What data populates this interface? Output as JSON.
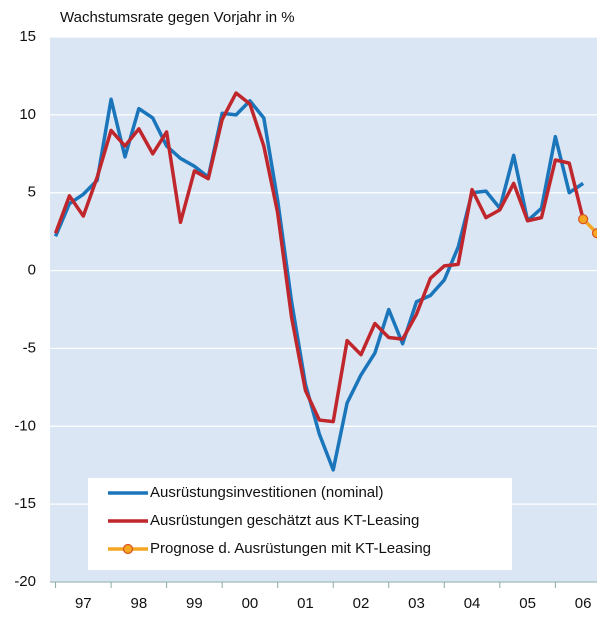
{
  "chart_data": {
    "type": "line",
    "title": "Wachstumsrate gegen Vorjahr in %",
    "xlim": [
      1996.9,
      2006.75
    ],
    "ylim": [
      -20,
      15
    ],
    "yticks": [
      -20,
      -15,
      -10,
      -5,
      0,
      5,
      10,
      15
    ],
    "xticks": [
      {
        "value": 1997.5,
        "label": "97"
      },
      {
        "value": 1998.5,
        "label": "98"
      },
      {
        "value": 1999.5,
        "label": "99"
      },
      {
        "value": 2000.5,
        "label": "00"
      },
      {
        "value": 2001.5,
        "label": "01"
      },
      {
        "value": 2002.5,
        "label": "02"
      },
      {
        "value": 2003.5,
        "label": "03"
      },
      {
        "value": 2004.5,
        "label": "04"
      },
      {
        "value": 2005.5,
        "label": "05"
      },
      {
        "value": 2006.5,
        "label": "06"
      }
    ],
    "grid": true,
    "background": "#dbe6f4",
    "series": [
      {
        "name": "Ausrüstungsinvestitionen (nominal)",
        "color": "#1a75bb",
        "x": [
          1997,
          1997.25,
          1997.5,
          1997.75,
          1998,
          1998.25,
          1998.5,
          1998.75,
          1999,
          1999.25,
          1999.5,
          1999.75,
          2000,
          2000.25,
          2000.5,
          2000.75,
          2001,
          2001.25,
          2001.5,
          2001.75,
          2002,
          2002.25,
          2002.5,
          2002.75,
          2003,
          2003.25,
          2003.5,
          2003.75,
          2004,
          2004.25,
          2004.5,
          2004.75,
          2005,
          2005.25,
          2005.5,
          2005.75,
          2006,
          2006.25,
          2006.5
        ],
        "values": [
          2.2,
          4.3,
          4.9,
          5.8,
          11.0,
          7.3,
          10.4,
          9.8,
          8.0,
          7.2,
          6.7,
          6.0,
          10.1,
          10.0,
          10.9,
          9.8,
          4.5,
          -2.0,
          -7.3,
          -10.5,
          -12.8,
          -8.5,
          -6.7,
          -5.3,
          -2.5,
          -4.7,
          -2.0,
          -1.6,
          -0.6,
          1.5,
          5.0,
          5.1,
          4.0,
          7.4,
          3.2,
          4.0,
          8.6,
          5.0,
          5.6
        ]
      },
      {
        "name": "Ausrüstungen geschätzt aus KT-Leasing",
        "color": "#c0272d",
        "x": [
          1997,
          1997.25,
          1997.5,
          1997.75,
          1998,
          1998.25,
          1998.5,
          1998.75,
          1999,
          1999.25,
          1999.5,
          1999.75,
          2000,
          2000.25,
          2000.5,
          2000.75,
          2001,
          2001.25,
          2001.5,
          2001.75,
          2002,
          2002.25,
          2002.5,
          2002.75,
          2003,
          2003.25,
          2003.5,
          2003.75,
          2004,
          2004.25,
          2004.5,
          2004.75,
          2005,
          2005.25,
          2005.5,
          2005.75,
          2006,
          2006.25,
          2006.5
        ],
        "values": [
          2.4,
          4.8,
          3.5,
          6.0,
          9.0,
          8.0,
          9.1,
          7.5,
          8.9,
          3.1,
          6.4,
          5.9,
          9.7,
          11.4,
          10.7,
          8.0,
          3.7,
          -3.0,
          -7.7,
          -9.6,
          -9.7,
          -4.5,
          -5.4,
          -3.4,
          -4.3,
          -4.4,
          -2.8,
          -0.5,
          0.3,
          0.4,
          5.2,
          3.4,
          3.9,
          5.6,
          3.2,
          3.4,
          7.1,
          6.9,
          3.3
        ]
      },
      {
        "name": "Prognose d. Ausrüstungen mit KT-Leasing",
        "color": "#f5a623",
        "marker_edge": "#d9531e",
        "x": [
          2006.5,
          2006.75
        ],
        "values": [
          3.3,
          2.4
        ]
      }
    ]
  }
}
